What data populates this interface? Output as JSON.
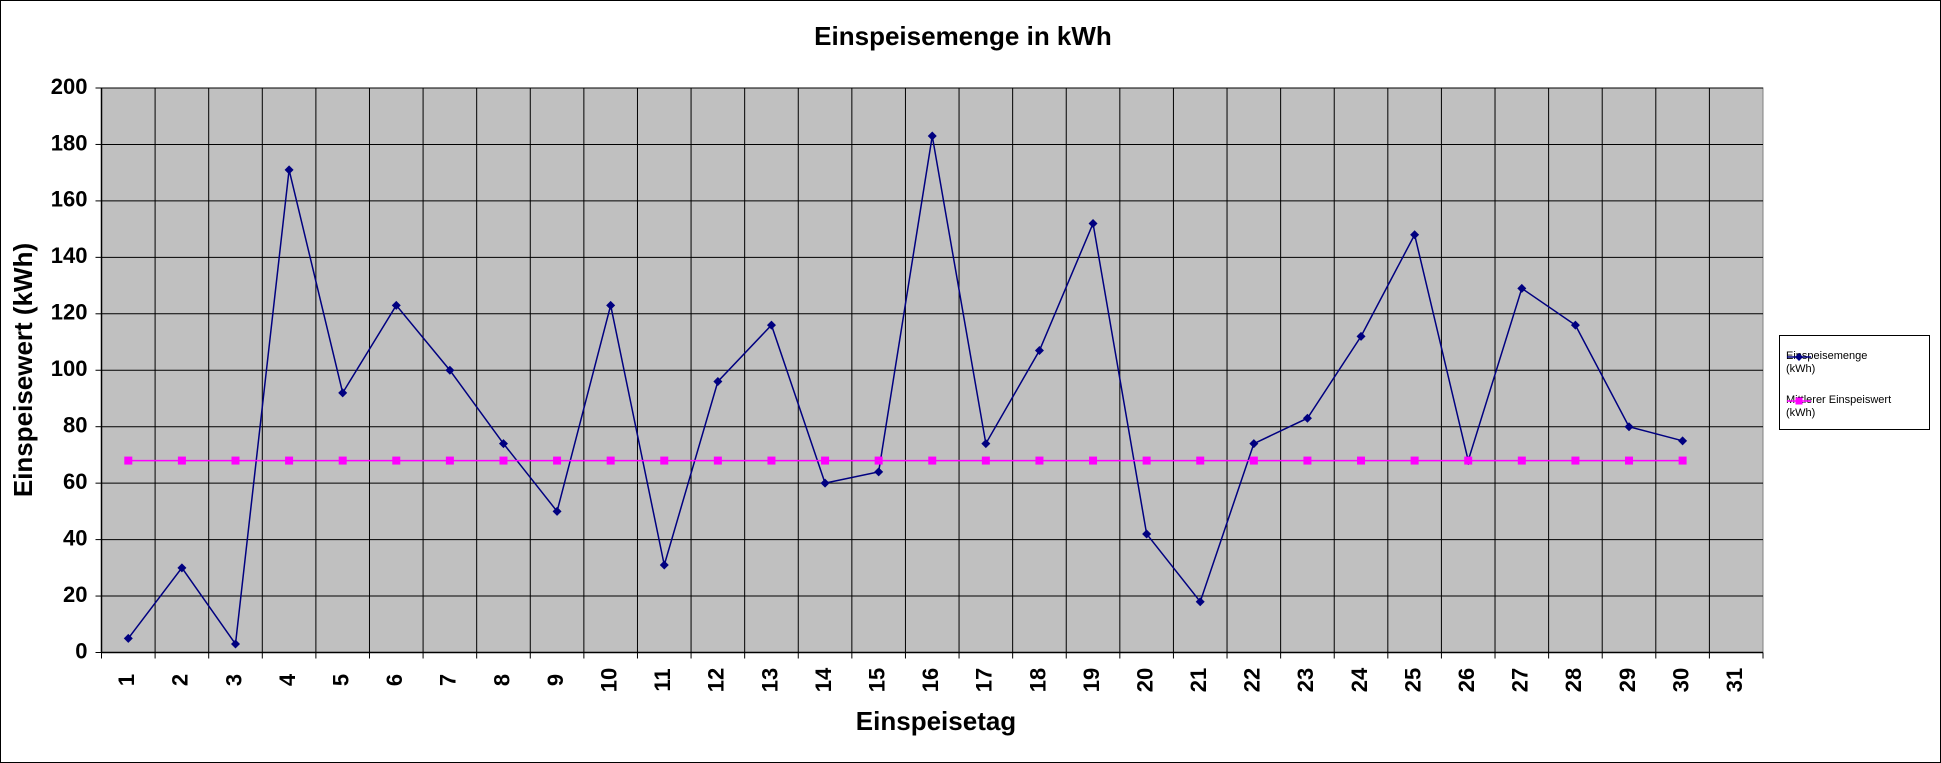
{
  "chart_data": {
    "type": "line",
    "title": "Einspeisemenge in kWh",
    "x_label": "Einspeisetag",
    "y_label": "Einspeisewert  (kWh)",
    "categories": [
      "1",
      "2",
      "3",
      "4",
      "5",
      "6",
      "7",
      "8",
      "9",
      "10",
      "11",
      "12",
      "13",
      "14",
      "15",
      "16",
      "17",
      "18",
      "19",
      "20",
      "21",
      "22",
      "23",
      "24",
      "25",
      "26",
      "27",
      "28",
      "29",
      "30",
      "31"
    ],
    "series": [
      {
        "name": "Einspeisemenge (kWh)",
        "color": "#000080",
        "marker": "diamond",
        "values": [
          5,
          30,
          3,
          171,
          92,
          123,
          100,
          74,
          50,
          123,
          31,
          96,
          116,
          60,
          64,
          183,
          74,
          107,
          152,
          42,
          18,
          74,
          83,
          112,
          148,
          68,
          129,
          116,
          80,
          75,
          null
        ]
      },
      {
        "name": "Mittlerer Einspeiswert (kWh)",
        "color": "#ff00ff",
        "marker": "square",
        "values": [
          68,
          68,
          68,
          68,
          68,
          68,
          68,
          68,
          68,
          68,
          68,
          68,
          68,
          68,
          68,
          68,
          68,
          68,
          68,
          68,
          68,
          68,
          68,
          68,
          68,
          68,
          68,
          68,
          68,
          68,
          null
        ]
      }
    ],
    "ylim": [
      0,
      200
    ],
    "yticks": [
      0,
      20,
      40,
      60,
      80,
      100,
      120,
      140,
      160,
      180,
      200
    ],
    "grid": true,
    "plot_background": "#c0c0c0",
    "legend": "right"
  }
}
